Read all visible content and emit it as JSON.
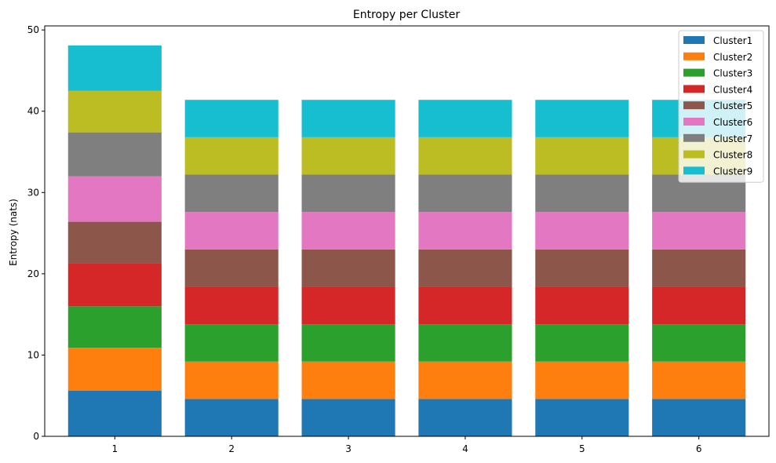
{
  "chart_data": {
    "type": "bar",
    "stacked": true,
    "title": "Entropy per Cluster",
    "xlabel": "",
    "ylabel": "Entropy (nats)",
    "categories": [
      "1",
      "2",
      "3",
      "4",
      "5",
      "6"
    ],
    "ylim": [
      0,
      50.5
    ],
    "yticks": [
      0,
      10,
      20,
      30,
      40,
      50
    ],
    "grid": false,
    "legend_position": "top-right",
    "series": [
      {
        "name": "Cluster1",
        "color": "#1f77b4",
        "values": [
          5.6,
          4.6,
          4.6,
          4.6,
          4.6,
          4.6
        ]
      },
      {
        "name": "Cluster2",
        "color": "#ff7f0e",
        "values": [
          5.3,
          4.6,
          4.6,
          4.6,
          4.6,
          4.6
        ]
      },
      {
        "name": "Cluster3",
        "color": "#2ca02c",
        "values": [
          5.1,
          4.6,
          4.6,
          4.6,
          4.6,
          4.6
        ]
      },
      {
        "name": "Cluster4",
        "color": "#d62728",
        "values": [
          5.3,
          4.6,
          4.6,
          4.6,
          4.6,
          4.6
        ]
      },
      {
        "name": "Cluster5",
        "color": "#8c564b",
        "values": [
          5.1,
          4.6,
          4.6,
          4.6,
          4.6,
          4.6
        ]
      },
      {
        "name": "Cluster6",
        "color": "#e377c2",
        "values": [
          5.6,
          4.6,
          4.6,
          4.6,
          4.6,
          4.6
        ]
      },
      {
        "name": "Cluster7",
        "color": "#7f7f7f",
        "values": [
          5.4,
          4.6,
          4.6,
          4.6,
          4.6,
          4.6
        ]
      },
      {
        "name": "Cluster8",
        "color": "#bcbd22",
        "values": [
          5.1,
          4.6,
          4.6,
          4.6,
          4.6,
          4.6
        ]
      },
      {
        "name": "Cluster9",
        "color": "#17becf",
        "values": [
          5.6,
          4.6,
          4.6,
          4.6,
          4.6,
          4.6
        ]
      }
    ]
  }
}
